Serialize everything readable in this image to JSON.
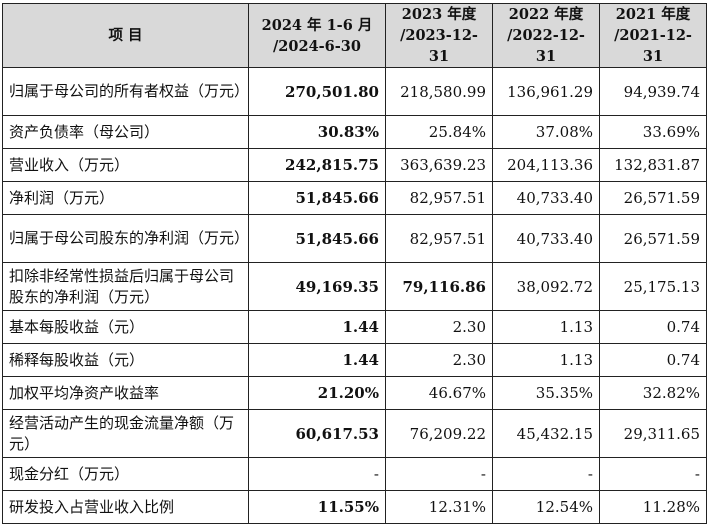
{
  "header": {
    "item": "项 目",
    "periods": [
      {
        "line1": "2024 年 1-6 月",
        "line2": "/2024-6-30"
      },
      {
        "line1": "2023 年度",
        "line2": "/2023-12-31"
      },
      {
        "line1": "2022 年度",
        "line2": "/2022-12-31"
      },
      {
        "line1": "2021 年度",
        "line2": "/2021-12-31"
      }
    ]
  },
  "rows": [
    {
      "label": "归属于母公司的所有者权益（万元）",
      "values": [
        "270,501.80",
        "218,580.99",
        "136,961.29",
        "94,939.74"
      ],
      "bold": [
        true,
        false,
        false,
        false
      ],
      "tall": true
    },
    {
      "label": "资产负债率（母公司）",
      "values": [
        "30.83%",
        "25.84%",
        "37.08%",
        "33.69%"
      ],
      "bold": [
        true,
        false,
        false,
        false
      ],
      "tall": false
    },
    {
      "label": "营业收入（万元）",
      "values": [
        "242,815.75",
        "363,639.23",
        "204,113.36",
        "132,831.87"
      ],
      "bold": [
        true,
        false,
        false,
        false
      ],
      "tall": false
    },
    {
      "label": "净利润（万元）",
      "values": [
        "51,845.66",
        "82,957.51",
        "40,733.40",
        "26,571.59"
      ],
      "bold": [
        true,
        false,
        false,
        false
      ],
      "tall": false
    },
    {
      "label": "归属于母公司股东的净利润（万元）",
      "values": [
        "51,845.66",
        "82,957.51",
        "40,733.40",
        "26,571.59"
      ],
      "bold": [
        true,
        false,
        false,
        false
      ],
      "tall": true
    },
    {
      "label": "扣除非经常性损益后归属于母公司股东的净利润（万元）",
      "values": [
        "49,169.35",
        "79,116.86",
        "38,092.72",
        "25,175.13"
      ],
      "bold": [
        true,
        true,
        false,
        false
      ],
      "tall": true
    },
    {
      "label": "基本每股收益（元）",
      "values": [
        "1.44",
        "2.30",
        "1.13",
        "0.74"
      ],
      "bold": [
        true,
        false,
        false,
        false
      ],
      "tall": false
    },
    {
      "label": "稀释每股收益（元）",
      "values": [
        "1.44",
        "2.30",
        "1.13",
        "0.74"
      ],
      "bold": [
        true,
        false,
        false,
        false
      ],
      "tall": false
    },
    {
      "label": "加权平均净资产收益率",
      "values": [
        "21.20%",
        "46.67%",
        "35.35%",
        "32.82%"
      ],
      "bold": [
        true,
        false,
        false,
        false
      ],
      "tall": false
    },
    {
      "label": "经营活动产生的现金流量净额（万元）",
      "values": [
        "60,617.53",
        "76,209.22",
        "45,432.15",
        "29,311.65"
      ],
      "bold": [
        true,
        false,
        false,
        false
      ],
      "tall": true
    },
    {
      "label": "现金分红（万元）",
      "values": [
        "-",
        "-",
        "-",
        "-"
      ],
      "bold": [
        false,
        false,
        false,
        false
      ],
      "tall": false
    },
    {
      "label": "研发投入占营业收入比例",
      "values": [
        "11.55%",
        "12.31%",
        "12.54%",
        "11.28%"
      ],
      "bold": [
        true,
        false,
        false,
        false
      ],
      "tall": false
    }
  ]
}
